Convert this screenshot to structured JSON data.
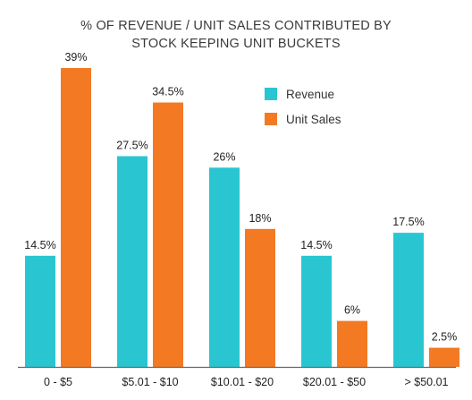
{
  "chart_data": {
    "type": "bar",
    "title_lines": [
      "% OF REVENUE / UNIT SALES CONTRIBUTED BY",
      "STOCK KEEPING UNIT BUCKETS"
    ],
    "categories": [
      "0 - $5",
      "$5.01 - $10",
      "$10.01 - $20",
      "$20.01 - $50",
      "> $50.01"
    ],
    "series": [
      {
        "name": "Revenue",
        "color": "#29c6d2",
        "values": [
          14.5,
          27.5,
          26,
          14.5,
          17.5
        ],
        "labels": [
          "14.5%",
          "27.5%",
          "26%",
          "14.5%",
          "17.5%"
        ]
      },
      {
        "name": "Unit Sales",
        "color": "#f37a23",
        "values": [
          39,
          34.5,
          18,
          6,
          2.5
        ],
        "labels": [
          "39%",
          "34.5%",
          "18%",
          "6%",
          "2.5%"
        ]
      }
    ],
    "ylim": [
      0,
      39
    ],
    "grid": false,
    "legend_position": "top-right",
    "baseline_color": "#666666"
  }
}
